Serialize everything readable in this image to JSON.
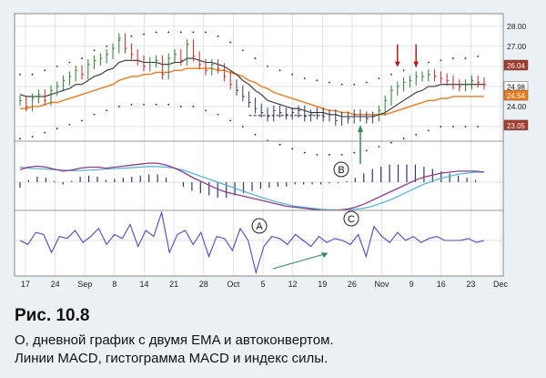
{
  "figure": {
    "label": "Рис. 10.8",
    "caption_line1": "О, дневной график с двумя EMA и автоконвертом.",
    "caption_line2": "Линии MACD, гистограмма MACD и индекс силы."
  },
  "colors": {
    "background": "#ecf1f6",
    "plot_bg": "#ffffff",
    "grid": "#cfd3d8",
    "up_bar": "#2e7d32",
    "down_bar": "#c62828",
    "neutral_bar": "#2b3a67",
    "fast_ema": "#333333",
    "slow_ema": "#f07a1a",
    "envelope": "#222222",
    "macd_line": "#8e3a8e",
    "signal_line": "#4ab3d6",
    "histogram": "#2b3a67",
    "force_index": "#4a4ac8",
    "arrow_red": "#b71c1c",
    "arrow_green": "#2e8b57"
  },
  "chart_data": {
    "type": "line",
    "title": "",
    "x_tick_labels": [
      "17",
      "24",
      "Sep",
      "8",
      "14",
      "21",
      "28",
      "Oct",
      "5",
      "12",
      "19",
      "26",
      "Nov",
      "9",
      "16",
      "23",
      "Dec"
    ],
    "y_tick_labels": [
      "28.00",
      "27.00",
      "26.00",
      "25.00",
      "24.00",
      "23.00"
    ],
    "ylim": [
      22.5,
      28.4
    ],
    "price_tags": [
      {
        "value": "26.04",
        "bg": "#a33a2a"
      },
      {
        "value": "24.98",
        "bg": "#ffffff"
      },
      {
        "value": "24.54",
        "bg": "#f07a1a"
      },
      {
        "value": "23.05",
        "bg": "#a33a2a"
      }
    ],
    "panels": {
      "price": {
        "series": [
          {
            "close": [
              24.3,
              24.0,
              24.4,
              24.6,
              24.3,
              24.8,
              25.0,
              25.3,
              25.5,
              25.8,
              25.6,
              26.1,
              26.3,
              26.4,
              26.6,
              26.9,
              27.4,
              26.9,
              26.6,
              26.3,
              26.0,
              26.2,
              26.3,
              25.6,
              26.4,
              26.6,
              26.3,
              27.1,
              26.5,
              26.1,
              25.8,
              26.1,
              25.9,
              25.5,
              25.1,
              24.8,
              24.5,
              24.2,
              23.9,
              23.7,
              23.5,
              23.8,
              23.7,
              23.6,
              23.7,
              23.8,
              23.5,
              23.6,
              23.7,
              23.5,
              23.6,
              23.3,
              23.5,
              23.4,
              23.6,
              23.5,
              23.4,
              23.5,
              23.8,
              24.3,
              24.8,
              25.0,
              25.2,
              25.3,
              25.5,
              25.5,
              25.6,
              25.5,
              25.4,
              25.3,
              25.1,
              25.0,
              25.1,
              25.3,
              25.2,
              25.1
            ]
          },
          {
            "fast_ema": [
              24.6,
              24.5,
              24.5,
              24.5,
              24.5,
              24.6,
              24.7,
              24.8,
              24.9,
              25.1,
              25.1,
              25.3,
              25.5,
              25.6,
              25.8,
              25.9,
              26.2,
              26.3,
              26.3,
              26.3,
              26.2,
              26.2,
              26.2,
              26.1,
              26.1,
              26.2,
              26.2,
              26.4,
              26.4,
              26.3,
              26.2,
              26.2,
              26.1,
              26.0,
              25.8,
              25.6,
              25.3,
              25.1,
              24.8,
              24.6,
              24.3,
              24.2,
              24.1,
              24.0,
              23.9,
              23.9,
              23.8,
              23.7,
              23.7,
              23.7,
              23.6,
              23.6,
              23.5,
              23.5,
              23.5,
              23.5,
              23.5,
              23.5,
              23.6,
              23.7,
              23.9,
              24.1,
              24.3,
              24.5,
              24.7,
              24.8,
              25.0,
              25.0,
              25.1,
              25.1,
              25.1,
              25.1,
              25.1,
              25.1,
              25.1,
              25.1
            ]
          },
          {
            "slow_ema": [
              23.9,
              23.9,
              24.0,
              24.0,
              24.1,
              24.2,
              24.2,
              24.3,
              24.4,
              24.5,
              24.6,
              24.7,
              24.8,
              24.9,
              25.0,
              25.1,
              25.3,
              25.4,
              25.5,
              25.5,
              25.6,
              25.6,
              25.7,
              25.7,
              25.7,
              25.8,
              25.8,
              25.9,
              25.9,
              25.9,
              25.9,
              25.9,
              25.8,
              25.8,
              25.7,
              25.6,
              25.5,
              25.3,
              25.2,
              25.0,
              24.9,
              24.7,
              24.6,
              24.5,
              24.4,
              24.3,
              24.2,
              24.1,
              24.0,
              23.9,
              23.8,
              23.8,
              23.7,
              23.7,
              23.6,
              23.6,
              23.6,
              23.6,
              23.6,
              23.6,
              23.7,
              23.8,
              23.9,
              24.0,
              24.1,
              24.2,
              24.3,
              24.3,
              24.4,
              24.4,
              24.5,
              24.5,
              24.5,
              24.5,
              24.5,
              24.5
            ]
          },
          {
            "envelope_upper": [
              25.6,
              25.6,
              25.6,
              25.7,
              25.8,
              25.9,
              26.0,
              26.1,
              26.2,
              26.3,
              26.4,
              26.6,
              26.8,
              26.9,
              27.0,
              27.1,
              27.3,
              27.4,
              27.5,
              27.6,
              27.6,
              27.7,
              27.7,
              27.7,
              27.7,
              27.7,
              27.7,
              27.7,
              27.7,
              27.7,
              27.7,
              27.6,
              27.5,
              27.4,
              27.2,
              27.0,
              26.8,
              26.6,
              26.4,
              26.2,
              26.0,
              25.9,
              25.8,
              25.7,
              25.6,
              25.5,
              25.4,
              25.3,
              25.3,
              25.2,
              25.2,
              25.1,
              25.1,
              25.1,
              25.1,
              25.1,
              25.2,
              25.3,
              25.4,
              25.5,
              25.6,
              25.7,
              25.8,
              25.9,
              26.0,
              26.1,
              26.2,
              26.2,
              26.3,
              26.3,
              26.4,
              26.4,
              26.4,
              26.5,
              26.5,
              26.5
            ]
          },
          {
            "envelope_lower": [
              22.4,
              22.4,
              22.5,
              22.6,
              22.7,
              22.8,
              22.9,
              23.0,
              23.1,
              23.2,
              23.3,
              23.5,
              23.6,
              23.7,
              23.8,
              23.9,
              24.0,
              24.0,
              24.1,
              24.1,
              24.1,
              24.1,
              24.1,
              24.1,
              24.1,
              24.1,
              24.0,
              24.0,
              24.0,
              23.9,
              23.8,
              23.7,
              23.6,
              23.5,
              23.3,
              23.2,
              23.0,
              22.8,
              22.6,
              22.4,
              22.3,
              22.2,
              22.1,
              22.0,
              21.9,
              21.8,
              21.7,
              21.7,
              21.6,
              21.6,
              21.6,
              21.6,
              21.6,
              21.6,
              21.7,
              21.7,
              21.8,
              21.9,
              22.0,
              22.1,
              22.2,
              22.3,
              22.4,
              22.5,
              22.6,
              22.7,
              22.8,
              22.9,
              23.0,
              23.0,
              23.0,
              23.0,
              23.0,
              23.0,
              23.0,
              23.0
            ]
          }
        ]
      },
      "macd": {
        "macd_line": [
          0.25,
          0.3,
          0.32,
          0.3,
          0.26,
          0.22,
          0.24,
          0.28,
          0.3,
          0.3,
          0.28,
          0.3,
          0.32,
          0.34,
          0.36,
          0.38,
          0.38,
          0.34,
          0.28,
          0.2,
          0.1,
          0.02,
          -0.06,
          -0.14,
          -0.2,
          -0.24,
          -0.28,
          -0.32,
          -0.36,
          -0.4,
          -0.44,
          -0.48,
          -0.5,
          -0.52,
          -0.54,
          -0.56,
          -0.56,
          -0.56,
          -0.54,
          -0.5,
          -0.44,
          -0.36,
          -0.28,
          -0.2,
          -0.12,
          -0.04,
          0.04,
          0.1,
          0.14,
          0.18,
          0.2,
          0.22,
          0.22,
          0.22,
          0.2
        ],
        "signal_line": [
          0.3,
          0.28,
          0.27,
          0.26,
          0.25,
          0.24,
          0.23,
          0.23,
          0.24,
          0.25,
          0.26,
          0.27,
          0.28,
          0.29,
          0.3,
          0.31,
          0.31,
          0.3,
          0.28,
          0.24,
          0.18,
          0.12,
          0.06,
          0.0,
          -0.06,
          -0.12,
          -0.18,
          -0.24,
          -0.3,
          -0.35,
          -0.4,
          -0.44,
          -0.48,
          -0.5,
          -0.52,
          -0.54,
          -0.55,
          -0.55,
          -0.55,
          -0.54,
          -0.52,
          -0.48,
          -0.42,
          -0.36,
          -0.28,
          -0.2,
          -0.12,
          -0.04,
          0.02,
          0.08,
          0.12,
          0.16,
          0.18,
          0.2,
          0.2
        ],
        "histogram": [
          -0.05,
          0.02,
          0.05,
          0.04,
          0.01,
          -0.02,
          0.01,
          0.05,
          0.06,
          0.05,
          0.02,
          0.03,
          0.04,
          0.05,
          0.06,
          0.07,
          0.07,
          0.04,
          0.0,
          -0.04,
          -0.08,
          -0.1,
          -0.12,
          -0.14,
          -0.14,
          -0.12,
          -0.1,
          -0.08,
          -0.06,
          -0.05,
          -0.04,
          -0.04,
          -0.02,
          -0.02,
          -0.02,
          -0.02,
          -0.01,
          -0.01,
          0.01,
          0.04,
          0.08,
          0.12,
          0.14,
          0.16,
          0.16,
          0.16,
          0.16,
          0.14,
          0.12,
          0.1,
          0.08,
          0.06,
          0.04,
          0.02,
          0.0
        ]
      },
      "force_index": {
        "values": [
          0.0,
          -0.2,
          0.4,
          0.3,
          -0.6,
          0.2,
          0.1,
          0.5,
          -0.1,
          0.2,
          0.6,
          -0.2,
          0.3,
          0.1,
          0.8,
          -0.3,
          0.5,
          0.2,
          1.4,
          -0.6,
          0.3,
          0.5,
          -0.2,
          0.4,
          -0.8,
          0.2,
          0.1,
          -0.5,
          0.6,
          0.0,
          -1.6,
          -0.3,
          0.2,
          0.1,
          -0.2,
          0.3,
          0.0,
          -0.3,
          0.2,
          -0.1,
          0.1,
          0.0,
          -0.2,
          0.3,
          -0.8,
          0.7,
          0.2,
          -0.1,
          0.4,
          0.0,
          0.2,
          -0.1,
          0.1,
          0.2,
          0.0,
          0.0,
          0.0,
          0.1,
          -0.1,
          0.0
        ]
      }
    },
    "annotations": [
      "A",
      "B",
      "C"
    ]
  }
}
